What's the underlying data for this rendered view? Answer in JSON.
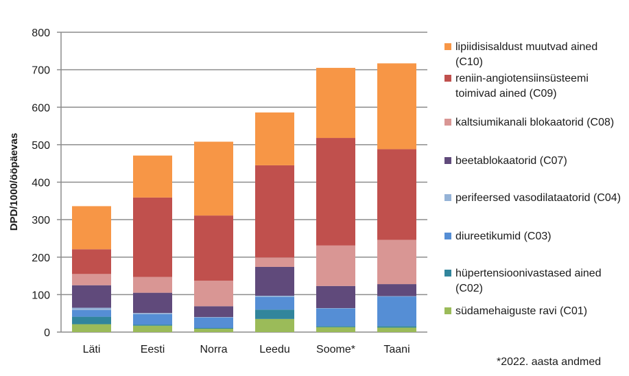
{
  "chart_data": {
    "type": "bar",
    "stacked": true,
    "title": "",
    "xlabel": "",
    "ylabel": "DPD/1000/ööpäevas",
    "ylim": [
      0,
      800
    ],
    "yticks": [
      0,
      100,
      200,
      300,
      400,
      500,
      600,
      700,
      800
    ],
    "ytick_labels": [
      "0",
      "100",
      "200",
      "300",
      "400",
      "500",
      "600",
      "700",
      "800"
    ],
    "grid": true,
    "legend_position": "right",
    "categories": [
      "Läti",
      "Eesti",
      "Norra",
      "Leedu",
      "Soome*",
      "Taani"
    ],
    "series": [
      {
        "name": "südamehaiguste ravi (C01)",
        "color": "#9BBB59",
        "values": [
          21,
          17,
          9,
          35,
          13,
          12
        ]
      },
      {
        "name": "hüpertensioonivastased ained (C02)",
        "color": "#31859C",
        "values": [
          20,
          3,
          2,
          25,
          3,
          4
        ]
      },
      {
        "name": "diureetikumid (C03)",
        "color": "#558ED5",
        "values": [
          18,
          28,
          28,
          34,
          47,
          79
        ]
      },
      {
        "name": "perifeersed vasodilataatorid (C04)",
        "color": "#95B3D7",
        "values": [
          6,
          3,
          1,
          3,
          1,
          1
        ]
      },
      {
        "name": "beetablokaatorid (C07)",
        "color": "#604A7B",
        "values": [
          60,
          54,
          29,
          77,
          59,
          32
        ]
      },
      {
        "name": "kaltsiumikanali blokaatorid (C08)",
        "color": "#D99694",
        "values": [
          30,
          42,
          68,
          25,
          108,
          118
        ]
      },
      {
        "name": "reniin-angiotensiinsüsteemi toimivad ained (C09)",
        "color": "#C0504D",
        "values": [
          66,
          212,
          174,
          246,
          287,
          242
        ]
      },
      {
        "name": "lipiidisisaldust muutvad ained (C10)",
        "color": "#F79646",
        "values": [
          115,
          112,
          197,
          141,
          187,
          229
        ]
      }
    ],
    "legend_order": [
      7,
      6,
      5,
      4,
      3,
      2,
      1,
      0
    ],
    "footnote": "*2022. aasta andmed"
  },
  "legend": {
    "items": [
      {
        "label": "lipiidisisaldust muutvad ained (C10)",
        "color": "#F79646"
      },
      {
        "label": "reniin-angiotensiinsüsteemi toimivad ained (C09)",
        "color": "#C0504D"
      },
      {
        "label": "kaltsiumikanali blokaatorid (C08)",
        "color": "#D99694"
      },
      {
        "label": "beetablokaatorid (C07)",
        "color": "#604A7B"
      },
      {
        "label": "perifeersed vasodilataatorid (C04)",
        "color": "#95B3D7"
      },
      {
        "label": "diureetikumid (C03)",
        "color": "#558ED5"
      },
      {
        "label": "hüpertensioonivastased ained (C02)",
        "color": "#31859C"
      },
      {
        "label": "südamehaiguste ravi (C01)",
        "color": "#9BBB59"
      }
    ]
  },
  "footnote": "*2022. aasta andmed"
}
